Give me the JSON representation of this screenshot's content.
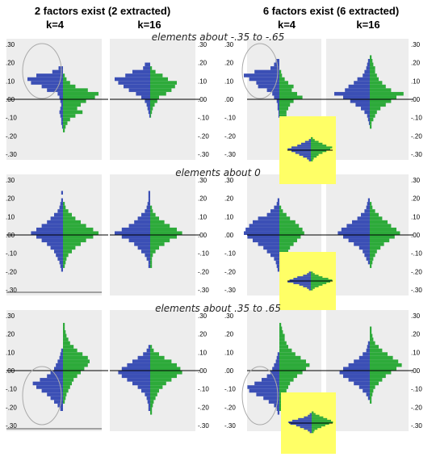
{
  "header": {
    "left_title": "2 factors exist (2 extracted)",
    "right_title": "6 factors exist (6 extracted)",
    "columns": [
      "k=4",
      "k=16",
      "k=4",
      "k=16"
    ]
  },
  "row_titles": [
    "elements about -.35 to -.65",
    "elements about 0",
    "elements about .35 to .65"
  ],
  "colors": {
    "blue": "#3b4fb5",
    "green": "#2daa3a",
    "panel": "#ededed",
    "highlight": "#ffff66",
    "circle": "#aaaaaa"
  },
  "tick_labels": [
    ".30",
    ".20",
    ".10",
    ".00",
    "-.10",
    "-.20",
    "-.30"
  ],
  "chart_data": {
    "type": "bar",
    "description_note": "back-to-back horizontal histograms; y = loading bin (data units), blue = left half, green = right half; widths estimated",
    "ylim": [
      -0.33,
      0.33
    ],
    "bin_width": 0.02,
    "panels": [
      {
        "name": "r1c1",
        "bins": [
          0.17,
          0.15,
          0.13,
          0.11,
          0.09,
          0.07,
          0.05,
          0.03,
          0.01,
          -0.01,
          -0.03,
          -0.05,
          -0.07,
          -0.09,
          -0.11,
          -0.13,
          -0.15,
          -0.17
        ],
        "blue": [
          5,
          12,
          30,
          40,
          36,
          24,
          18,
          6,
          4,
          3,
          2,
          3,
          4,
          3,
          2,
          2,
          1,
          0
        ],
        "green": [
          0,
          0,
          2,
          4,
          8,
          14,
          28,
          40,
          36,
          26,
          20,
          16,
          22,
          14,
          8,
          5,
          3,
          2
        ]
      },
      {
        "name": "r1c2",
        "bins": [
          0.19,
          0.17,
          0.15,
          0.13,
          0.11,
          0.09,
          0.07,
          0.05,
          0.03,
          0.01,
          -0.01,
          -0.03,
          -0.05,
          -0.07,
          -0.09,
          -0.11
        ],
        "blue": [
          6,
          8,
          20,
          28,
          40,
          36,
          30,
          24,
          16,
          10,
          6,
          4,
          3,
          2,
          1,
          0
        ],
        "green": [
          0,
          2,
          6,
          14,
          20,
          30,
          28,
          24,
          18,
          10,
          8,
          5,
          3,
          2,
          1,
          0
        ]
      },
      {
        "name": "r1c3",
        "bins": [
          0.21,
          0.19,
          0.17,
          0.15,
          0.13,
          0.11,
          0.09,
          0.07,
          0.05,
          0.03,
          0.01,
          -0.01,
          -0.03,
          -0.05,
          -0.07,
          -0.09,
          -0.11,
          -0.13,
          -0.15,
          -0.17,
          -0.19
        ],
        "blue": [
          4,
          6,
          10,
          28,
          40,
          34,
          26,
          24,
          14,
          8,
          6,
          3,
          2,
          2,
          1,
          1,
          0,
          0,
          0,
          0,
          0
        ],
        "green": [
          0,
          0,
          0,
          2,
          3,
          6,
          10,
          16,
          14,
          20,
          26,
          16,
          12,
          10,
          8,
          8,
          6,
          5,
          4,
          3,
          2
        ]
      },
      {
        "name": "r1c4",
        "bins": [
          0.23,
          0.21,
          0.19,
          0.17,
          0.15,
          0.13,
          0.11,
          0.09,
          0.07,
          0.05,
          0.03,
          0.01,
          -0.01,
          -0.03,
          -0.05,
          -0.07,
          -0.09,
          -0.11,
          -0.13,
          -0.15
        ],
        "blue": [
          0,
          2,
          3,
          4,
          6,
          8,
          14,
          18,
          24,
          28,
          40,
          30,
          22,
          16,
          10,
          6,
          3,
          2,
          1,
          0
        ],
        "green": [
          2,
          3,
          4,
          6,
          6,
          8,
          10,
          14,
          18,
          24,
          38,
          30,
          24,
          18,
          12,
          8,
          6,
          4,
          2,
          2
        ]
      },
      {
        "name": "r2c1",
        "bins": [
          0.23,
          0.21,
          0.19,
          0.17,
          0.15,
          0.13,
          0.11,
          0.09,
          0.07,
          0.05,
          0.03,
          0.01,
          -0.01,
          -0.03,
          -0.05,
          -0.07,
          -0.09,
          -0.11,
          -0.13,
          -0.15,
          -0.17,
          -0.19
        ],
        "blue": [
          2,
          0,
          2,
          3,
          4,
          6,
          10,
          14,
          18,
          24,
          30,
          36,
          30,
          24,
          18,
          14,
          10,
          8,
          6,
          4,
          3,
          2
        ],
        "green": [
          0,
          0,
          0,
          2,
          3,
          6,
          10,
          14,
          20,
          26,
          34,
          40,
          34,
          26,
          20,
          14,
          10,
          6,
          4,
          3,
          2,
          0
        ]
      },
      {
        "name": "r2c2",
        "bins": [
          0.23,
          0.21,
          0.19,
          0.17,
          0.15,
          0.13,
          0.11,
          0.09,
          0.07,
          0.05,
          0.03,
          0.01,
          -0.01,
          -0.03,
          -0.05,
          -0.07,
          -0.09,
          -0.11,
          -0.13,
          -0.15,
          -0.17,
          -0.19
        ],
        "blue": [
          2,
          2,
          2,
          3,
          4,
          6,
          10,
          14,
          18,
          24,
          32,
          40,
          32,
          24,
          18,
          14,
          10,
          6,
          4,
          2,
          2,
          0
        ],
        "green": [
          0,
          0,
          0,
          0,
          2,
          3,
          6,
          10,
          16,
          22,
          30,
          36,
          30,
          22,
          16,
          10,
          6,
          3,
          2,
          2,
          2,
          0
        ]
      },
      {
        "name": "r2c3",
        "bins": [
          0.19,
          0.17,
          0.15,
          0.13,
          0.11,
          0.09,
          0.07,
          0.05,
          0.03,
          0.01,
          -0.01,
          -0.03,
          -0.05,
          -0.07,
          -0.09,
          -0.11,
          -0.13,
          -0.15,
          -0.17,
          -0.19,
          -0.21
        ],
        "blue": [
          2,
          3,
          6,
          10,
          14,
          24,
          30,
          34,
          38,
          40,
          36,
          30,
          24,
          18,
          14,
          10,
          6,
          4,
          3,
          2,
          0
        ],
        "green": [
          0,
          0,
          2,
          4,
          8,
          12,
          18,
          22,
          26,
          28,
          24,
          20,
          16,
          12,
          10,
          6,
          4,
          3,
          2,
          2,
          0
        ]
      },
      {
        "name": "r2c4",
        "bins": [
          0.19,
          0.17,
          0.15,
          0.13,
          0.11,
          0.09,
          0.07,
          0.05,
          0.03,
          0.01,
          -0.01,
          -0.03,
          -0.05,
          -0.07,
          -0.09,
          -0.11,
          -0.13,
          -0.15,
          -0.17
        ],
        "blue": [
          2,
          3,
          4,
          6,
          10,
          14,
          20,
          26,
          32,
          36,
          30,
          24,
          18,
          12,
          8,
          6,
          4,
          2,
          0
        ],
        "green": [
          0,
          2,
          3,
          6,
          10,
          14,
          20,
          24,
          30,
          34,
          28,
          22,
          16,
          12,
          8,
          6,
          4,
          3,
          2
        ]
      },
      {
        "name": "r3c1",
        "bins": [
          0.25,
          0.23,
          0.21,
          0.19,
          0.17,
          0.15,
          0.13,
          0.11,
          0.09,
          0.07,
          0.05,
          0.03,
          0.01,
          -0.01,
          -0.03,
          -0.05,
          -0.07,
          -0.09,
          -0.11,
          -0.13,
          -0.15,
          -0.17,
          -0.19,
          -0.21
        ],
        "blue": [
          0,
          0,
          0,
          0,
          0,
          0,
          0,
          2,
          3,
          4,
          6,
          8,
          10,
          14,
          18,
          26,
          34,
          30,
          24,
          18,
          14,
          10,
          6,
          3
        ],
        "green": [
          2,
          2,
          3,
          4,
          6,
          8,
          12,
          16,
          22,
          28,
          30,
          28,
          24,
          20,
          16,
          12,
          10,
          8,
          6,
          4,
          3,
          2,
          0,
          0
        ]
      },
      {
        "name": "r3c2",
        "bins": [
          0.15,
          0.13,
          0.11,
          0.09,
          0.07,
          0.05,
          0.03,
          0.01,
          -0.01,
          -0.03,
          -0.05,
          -0.07,
          -0.09,
          -0.11,
          -0.13,
          -0.15,
          -0.17,
          -0.19,
          -0.21,
          -0.23
        ],
        "blue": [
          0,
          2,
          4,
          8,
          14,
          20,
          26,
          32,
          36,
          32,
          26,
          20,
          14,
          10,
          6,
          4,
          3,
          2,
          2,
          0
        ],
        "green": [
          0,
          2,
          4,
          10,
          16,
          24,
          30,
          34,
          36,
          30,
          24,
          18,
          14,
          10,
          8,
          6,
          4,
          3,
          2,
          2
        ]
      },
      {
        "name": "r3c3",
        "bins": [
          0.25,
          0.23,
          0.21,
          0.19,
          0.17,
          0.15,
          0.13,
          0.11,
          0.09,
          0.07,
          0.05,
          0.03,
          0.01,
          -0.01,
          -0.03,
          -0.05,
          -0.07,
          -0.09,
          -0.11,
          -0.13,
          -0.15,
          -0.17,
          -0.19,
          -0.21,
          -0.23
        ],
        "blue": [
          0,
          0,
          0,
          0,
          0,
          0,
          0,
          0,
          2,
          3,
          4,
          6,
          8,
          10,
          14,
          20,
          28,
          36,
          34,
          26,
          18,
          12,
          6,
          3,
          2
        ],
        "green": [
          2,
          3,
          4,
          6,
          6,
          8,
          10,
          14,
          18,
          24,
          30,
          34,
          30,
          26,
          20,
          16,
          12,
          10,
          8,
          6,
          4,
          3,
          2,
          2,
          0
        ]
      },
      {
        "name": "r3c4",
        "bins": [
          0.23,
          0.21,
          0.19,
          0.17,
          0.15,
          0.13,
          0.11,
          0.09,
          0.07,
          0.05,
          0.03,
          0.01,
          -0.01,
          -0.03,
          -0.05,
          -0.07,
          -0.09,
          -0.11,
          -0.13,
          -0.15,
          -0.17,
          -0.19
        ],
        "blue": [
          0,
          0,
          0,
          0,
          2,
          3,
          4,
          8,
          12,
          18,
          24,
          30,
          34,
          30,
          24,
          18,
          12,
          8,
          4,
          2,
          0,
          0
        ],
        "green": [
          2,
          2,
          3,
          4,
          6,
          10,
          14,
          20,
          26,
          32,
          36,
          30,
          24,
          18,
          14,
          10,
          6,
          4,
          3,
          2,
          2,
          0
        ]
      },
      {
        "name": "r1c3-inset",
        "bins": [
          0.13,
          0.11,
          0.09,
          0.07,
          0.05,
          0.03,
          0.01,
          -0.01,
          -0.03,
          -0.05,
          -0.07,
          -0.09,
          -0.11
        ],
        "blue": [
          0,
          2,
          6,
          10,
          14,
          20,
          24,
          20,
          16,
          12,
          8,
          4,
          2
        ],
        "green": [
          2,
          4,
          8,
          12,
          16,
          22,
          20,
          16,
          12,
          8,
          6,
          3,
          2
        ]
      },
      {
        "name": "r2c3-inset",
        "bins": [
          0.11,
          0.09,
          0.07,
          0.05,
          0.03,
          0.01,
          -0.01,
          -0.03,
          -0.05,
          -0.07,
          -0.09,
          -0.11
        ],
        "blue": [
          2,
          4,
          8,
          14,
          18,
          22,
          24,
          18,
          12,
          8,
          4,
          2
        ],
        "green": [
          2,
          4,
          8,
          12,
          18,
          22,
          20,
          16,
          12,
          8,
          4,
          2
        ]
      },
      {
        "name": "r3c3-inset",
        "bins": [
          0.13,
          0.11,
          0.09,
          0.07,
          0.05,
          0.03,
          0.01,
          -0.01,
          -0.03,
          -0.05,
          -0.07,
          -0.09,
          -0.11
        ],
        "blue": [
          0,
          2,
          4,
          8,
          14,
          20,
          24,
          22,
          16,
          12,
          8,
          4,
          2
        ],
        "green": [
          2,
          4,
          8,
          12,
          16,
          20,
          22,
          18,
          14,
          10,
          6,
          3,
          2
        ]
      }
    ]
  }
}
